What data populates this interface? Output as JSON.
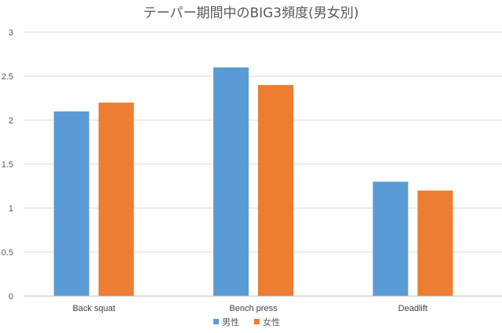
{
  "chart_data": {
    "type": "bar",
    "title": "テーパー期間中のBIG3頻度(男女別)",
    "xlabel": "",
    "ylabel": "",
    "categories": [
      "Back squat",
      "Bench press",
      "Deadlift"
    ],
    "series": [
      {
        "name": "男性",
        "values": [
          2.1,
          2.6,
          1.3
        ],
        "color": "#5b9bd5"
      },
      {
        "name": "女性",
        "values": [
          2.2,
          2.4,
          1.2
        ],
        "color": "#ed7d31"
      }
    ],
    "ylim": [
      0,
      3
    ],
    "yticks": [
      "0",
      "0.5",
      "1",
      "1.5",
      "2",
      "2.5",
      "3"
    ],
    "grid": true,
    "legend": "bottom"
  }
}
